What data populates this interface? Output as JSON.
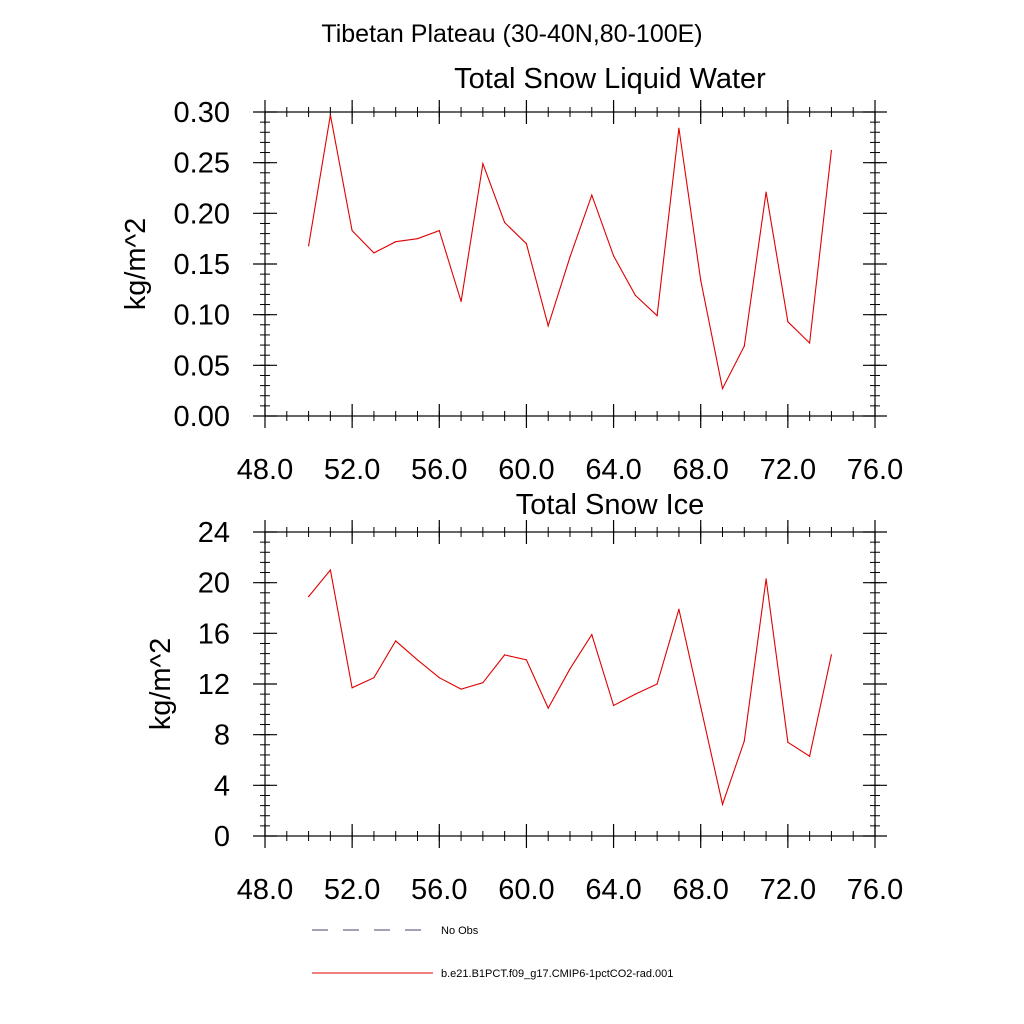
{
  "figure": {
    "title": "Tibetan Plateau (30-40N,80-100E)"
  },
  "chart_data": [
    {
      "type": "line",
      "title": "Total Snow Liquid Water",
      "xlabel": "",
      "ylabel": "kg/m^2",
      "xlim": [
        48,
        76
      ],
      "ylim": [
        0,
        0.3
      ],
      "xticks": [
        48,
        52,
        56,
        60,
        64,
        68,
        72,
        76
      ],
      "xtick_labels": [
        "48.0",
        "52.0",
        "56.0",
        "60.0",
        "64.0",
        "68.0",
        "72.0",
        "76.0"
      ],
      "yticks": [
        0,
        0.05,
        0.1,
        0.15,
        0.2,
        0.25,
        0.3
      ],
      "ytick_labels": [
        "0.00",
        "0.05",
        "0.10",
        "0.15",
        "0.20",
        "0.25",
        "0.30"
      ],
      "x": [
        50,
        51,
        52,
        53,
        54,
        55,
        56,
        57,
        58,
        59,
        60,
        61,
        62,
        63,
        64,
        65,
        66,
        67,
        68,
        69,
        70,
        71,
        72,
        73,
        74
      ],
      "series": [
        {
          "name": "b.e21.B1PCT.f09_g17.CMIP6-1pctCO2-rad.001",
          "color": "#e00000",
          "values": [
            0.168,
            0.297,
            0.183,
            0.161,
            0.172,
            0.175,
            0.183,
            0.113,
            0.249,
            0.191,
            0.17,
            0.089,
            0.157,
            0.218,
            0.158,
            0.119,
            0.099,
            0.284,
            0.134,
            0.027,
            0.069,
            0.221,
            0.093,
            0.072,
            0.262
          ]
        }
      ],
      "grid": false
    },
    {
      "type": "line",
      "title": "Total Snow Ice",
      "xlabel": "",
      "ylabel": "kg/m^2",
      "xlim": [
        48,
        76
      ],
      "ylim": [
        0,
        24
      ],
      "xticks": [
        48,
        52,
        56,
        60,
        64,
        68,
        72,
        76
      ],
      "xtick_labels": [
        "48.0",
        "52.0",
        "56.0",
        "60.0",
        "64.0",
        "68.0",
        "72.0",
        "76.0"
      ],
      "yticks": [
        0,
        4,
        8,
        12,
        16,
        20,
        24
      ],
      "ytick_labels": [
        "0",
        "4",
        "8",
        "12",
        "16",
        "20",
        "24"
      ],
      "x": [
        50,
        51,
        52,
        53,
        54,
        55,
        56,
        57,
        58,
        59,
        60,
        61,
        62,
        63,
        64,
        65,
        66,
        67,
        68,
        69,
        70,
        71,
        72,
        73,
        74
      ],
      "series": [
        {
          "name": "b.e21.B1PCT.f09_g17.CMIP6-1pctCO2-rad.001",
          "color": "#e00000",
          "values": [
            18.9,
            21.0,
            11.7,
            12.5,
            15.4,
            13.9,
            12.5,
            11.6,
            12.1,
            14.3,
            13.9,
            10.1,
            13.2,
            15.9,
            10.3,
            11.2,
            12.0,
            17.9,
            10.2,
            2.5,
            7.5,
            20.3,
            7.4,
            6.3,
            14.3
          ]
        }
      ],
      "grid": false
    }
  ],
  "legend": {
    "placement": "bottom",
    "items": [
      {
        "label": "No Obs",
        "color": "#6a6a8a",
        "style": "dashed"
      },
      {
        "label": "b.e21.B1PCT.f09_g17.CMIP6-1pctCO2-rad.001",
        "color": "#e00000",
        "style": "solid"
      }
    ]
  }
}
